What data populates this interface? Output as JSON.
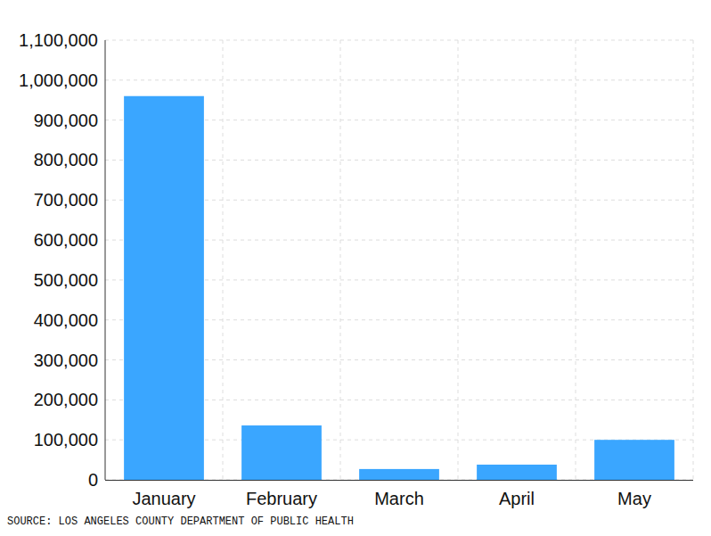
{
  "chart_data": {
    "type": "bar",
    "categories": [
      "January",
      "February",
      "March",
      "April",
      "May"
    ],
    "values": [
      960000,
      136000,
      27000,
      38000,
      100000
    ],
    "color": "#3aa6ff",
    "ylim": [
      0,
      1100000
    ],
    "yticks": [
      0,
      {
        "value": 100000,
        "label": "100,000"
      },
      {
        "value": 200000,
        "label": "200,000"
      },
      {
        "value": 300000,
        "label": "300,000"
      },
      {
        "value": 400000,
        "label": "400,000"
      },
      {
        "value": 500000,
        "label": "500,000"
      },
      {
        "value": 600000,
        "label": "600,000"
      },
      {
        "value": 700000,
        "label": "700,000"
      },
      {
        "value": 800000,
        "label": "800,000"
      },
      {
        "value": 900000,
        "label": "900,000"
      },
      {
        "value": 1000000,
        "label": "1,000,000"
      },
      {
        "value": 1100000,
        "label": "1,100,000"
      }
    ],
    "grid": true,
    "source": "SOURCE: LOS ANGELES COUNTY DEPARTMENT OF PUBLIC HEALTH"
  }
}
